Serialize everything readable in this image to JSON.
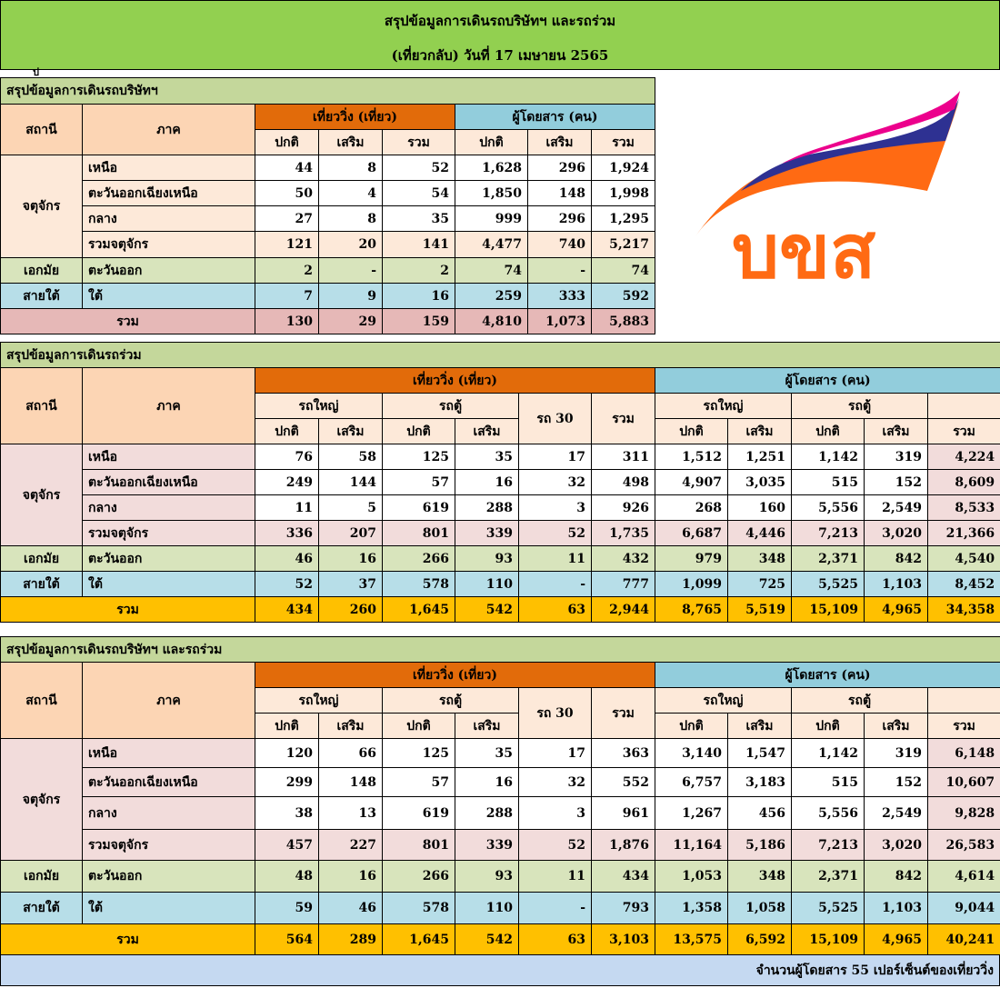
{
  "banner": {
    "title": "สรุปข้อมูลการเดินรถบริษัทฯ และรถร่วม",
    "subtitle": "(เที่ยวกลับ) วันที่ 17 เมษายน  2565"
  },
  "logo": {
    "text": "บขส",
    "colors": {
      "orange": "#ff6a13",
      "blue": "#2e3192",
      "pink": "#ec008c"
    }
  },
  "common": {
    "station": "สถานี",
    "region": "ภาค",
    "trips": "เที่ยววิ่ง (เที่ยว)",
    "passengers": "ผู้โดยสาร (คน)",
    "normal": "ปกติ",
    "extra": "เสริม",
    "total": "รวม",
    "bigbus": "รถใหญ่",
    "van": "รถตู้",
    "bus30": "รถ 30",
    "station_a": "จตุจักร",
    "station_b": "เอกมัย",
    "station_c": "สายใต้",
    "r_north": "เหนือ",
    "r_ne": "ตะวันออกเฉียงเหนือ",
    "r_central": "กลาง",
    "r_sum_a": "รวมจตุจักร",
    "r_east": "ตะวันออก",
    "r_south": "ใต้",
    "grand": "รวม"
  },
  "stray_mark": "ป",
  "company": {
    "title": "สรุปข้อมูลการเดินรถบริษัทฯ",
    "rows": [
      [
        "44",
        "8",
        "52",
        "1,628",
        "296",
        "1,924"
      ],
      [
        "50",
        "4",
        "54",
        "1,850",
        "148",
        "1,998"
      ],
      [
        "27",
        "8",
        "35",
        "999",
        "296",
        "1,295"
      ],
      [
        "121",
        "20",
        "141",
        "4,477",
        "740",
        "5,217"
      ],
      [
        "2",
        "-",
        "2",
        "74",
        "-",
        "74"
      ],
      [
        "7",
        "9",
        "16",
        "259",
        "333",
        "592"
      ],
      [
        "130",
        "29",
        "159",
        "4,810",
        "1,073",
        "5,883"
      ]
    ]
  },
  "joint": {
    "title": "สรุปข้อมูลการเดินรถร่วม",
    "rows": [
      [
        "76",
        "58",
        "125",
        "35",
        "17",
        "311",
        "1,512",
        "1,251",
        "1,142",
        "319",
        "4,224"
      ],
      [
        "249",
        "144",
        "57",
        "16",
        "32",
        "498",
        "4,907",
        "3,035",
        "515",
        "152",
        "8,609"
      ],
      [
        "11",
        "5",
        "619",
        "288",
        "3",
        "926",
        "268",
        "160",
        "5,556",
        "2,549",
        "8,533"
      ],
      [
        "336",
        "207",
        "801",
        "339",
        "52",
        "1,735",
        "6,687",
        "4,446",
        "7,213",
        "3,020",
        "21,366"
      ],
      [
        "46",
        "16",
        "266",
        "93",
        "11",
        "432",
        "979",
        "348",
        "2,371",
        "842",
        "4,540"
      ],
      [
        "52",
        "37",
        "578",
        "110",
        "-",
        "777",
        "1,099",
        "725",
        "5,525",
        "1,103",
        "8,452"
      ],
      [
        "434",
        "260",
        "1,645",
        "542",
        "63",
        "2,944",
        "8,765",
        "5,519",
        "15,109",
        "4,965",
        "34,358"
      ]
    ]
  },
  "combined": {
    "title": "สรุปข้อมูลการเดินรถบริษัทฯ และรถร่วม",
    "rows": [
      [
        "120",
        "66",
        "125",
        "35",
        "17",
        "363",
        "3,140",
        "1,547",
        "1,142",
        "319",
        "6,148"
      ],
      [
        "299",
        "148",
        "57",
        "16",
        "32",
        "552",
        "6,757",
        "3,183",
        "515",
        "152",
        "10,607"
      ],
      [
        "38",
        "13",
        "619",
        "288",
        "3",
        "961",
        "1,267",
        "456",
        "5,556",
        "2,549",
        "9,828"
      ],
      [
        "457",
        "227",
        "801",
        "339",
        "52",
        "1,876",
        "11,164",
        "5,186",
        "7,213",
        "3,020",
        "26,583"
      ],
      [
        "48",
        "16",
        "266",
        "93",
        "11",
        "434",
        "1,053",
        "348",
        "2,371",
        "842",
        "4,614"
      ],
      [
        "59",
        "46",
        "578",
        "110",
        "-",
        "793",
        "1,358",
        "1,058",
        "5,525",
        "1,103",
        "9,044"
      ],
      [
        "564",
        "289",
        "1,645",
        "542",
        "63",
        "3,103",
        "13,575",
        "6,592",
        "15,109",
        "4,965",
        "40,241"
      ]
    ]
  },
  "footer": {
    "note": "จำนวนผู้โดยสาร 55 เปอร์เซ็นต์ของเที่ยววิ่ง"
  }
}
